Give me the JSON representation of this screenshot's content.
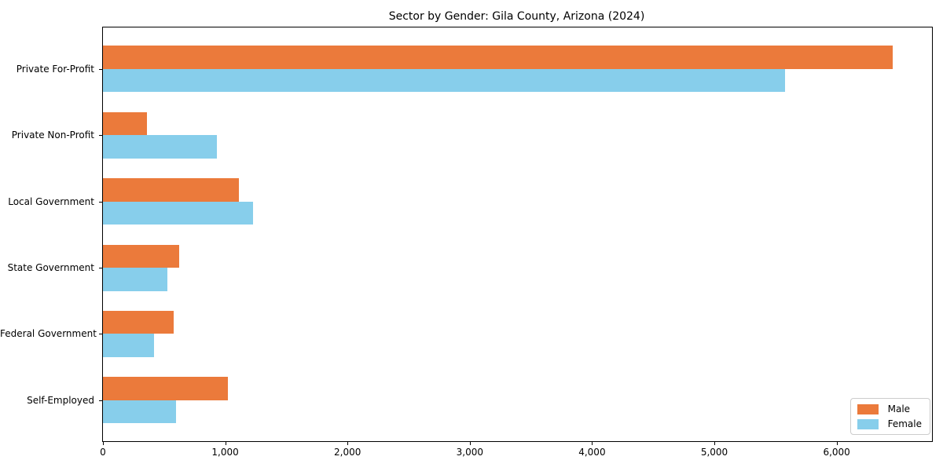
{
  "chart_data": {
    "type": "bar",
    "orientation": "horizontal",
    "title": "Sector by Gender: Gila County, Arizona (2024)",
    "categories": [
      "Private For-Profit",
      "Private Non-Profit",
      "Local Government",
      "State Government",
      "Federal Government",
      "Self-Employed"
    ],
    "series": [
      {
        "name": "Male",
        "color": "#EB7A3B",
        "values": [
          6460,
          360,
          1115,
          625,
          580,
          1020
        ]
      },
      {
        "name": "Female",
        "color": "#87CEEB",
        "values": [
          5580,
          935,
          1225,
          525,
          420,
          595
        ]
      }
    ],
    "xlim": [
      0,
      6780
    ],
    "xticks": [
      0,
      1000,
      2000,
      3000,
      4000,
      5000,
      6000
    ],
    "xtick_labels": [
      "0",
      "1,000",
      "2,000",
      "3,000",
      "4,000",
      "5,000",
      "6,000"
    ],
    "grid": false,
    "legend_position": "lower right",
    "background_color": "#ffffff",
    "spine_color": "#000000"
  }
}
